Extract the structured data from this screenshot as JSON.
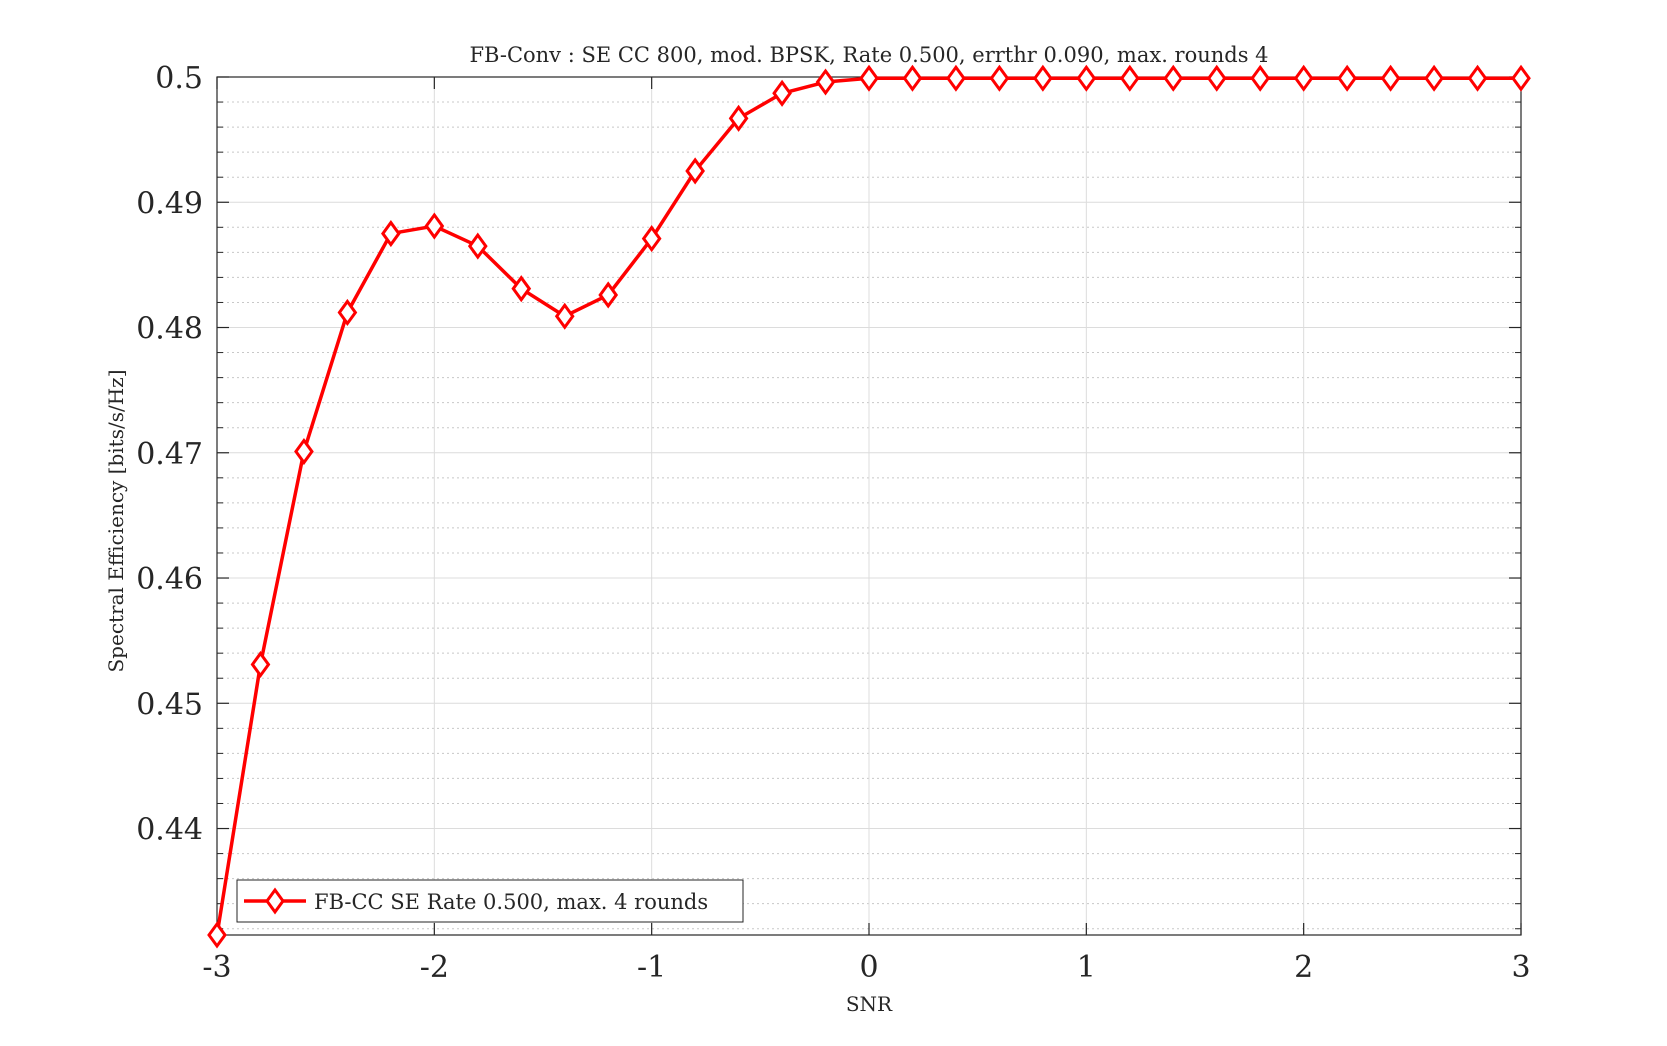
{
  "chart_data": {
    "type": "line",
    "title": "FB-Conv : SE CC 800, mod. BPSK, Rate 0.500, errthr 0.090, max. rounds 4",
    "xlabel": "SNR",
    "ylabel": "Spectral Efficiency [bits/s/Hz]",
    "xlim": [
      -3,
      3
    ],
    "ylim": [
      0.4315,
      0.5
    ],
    "xticks": [
      -3,
      -2,
      -1,
      0,
      1,
      2,
      3
    ],
    "xtick_labels": [
      "-3",
      "-2",
      "-1",
      "0",
      "1",
      "2",
      "3"
    ],
    "yticks": [
      0.44,
      0.45,
      0.46,
      0.47,
      0.48,
      0.49,
      0.5
    ],
    "ytick_labels": [
      "0.44",
      "0.45",
      "0.46",
      "0.47",
      "0.48",
      "0.49",
      "0.5"
    ],
    "grid": true,
    "minor_grid": true,
    "legend_position": "bottom-left",
    "series": [
      {
        "name": "FB-CC SE Rate 0.500, max. 4 rounds",
        "color": "#ff0000",
        "marker": "diamond",
        "x": [
          -3,
          -2.8,
          -2.6,
          -2.4,
          -2.2,
          -2,
          -1.8,
          -1.6,
          -1.4,
          -1.2,
          -1,
          -0.8,
          -0.6,
          -0.4,
          -0.2,
          0,
          0.2,
          0.4,
          0.6,
          0.8,
          1,
          1.2,
          1.4,
          1.6,
          1.8,
          2,
          2.2,
          2.4,
          2.6,
          2.8,
          3
        ],
        "y": [
          0.4315,
          0.4531,
          0.4701,
          0.4812,
          0.4875,
          0.4881,
          0.4865,
          0.4831,
          0.4809,
          0.4826,
          0.4871,
          0.4925,
          0.4967,
          0.4987,
          0.4996,
          0.4999,
          0.4999,
          0.4999,
          0.4999,
          0.4999,
          0.4999,
          0.4999,
          0.4999,
          0.4999,
          0.4999,
          0.4999,
          0.4999,
          0.4999,
          0.4999,
          0.4999,
          0.4999
        ]
      }
    ]
  }
}
